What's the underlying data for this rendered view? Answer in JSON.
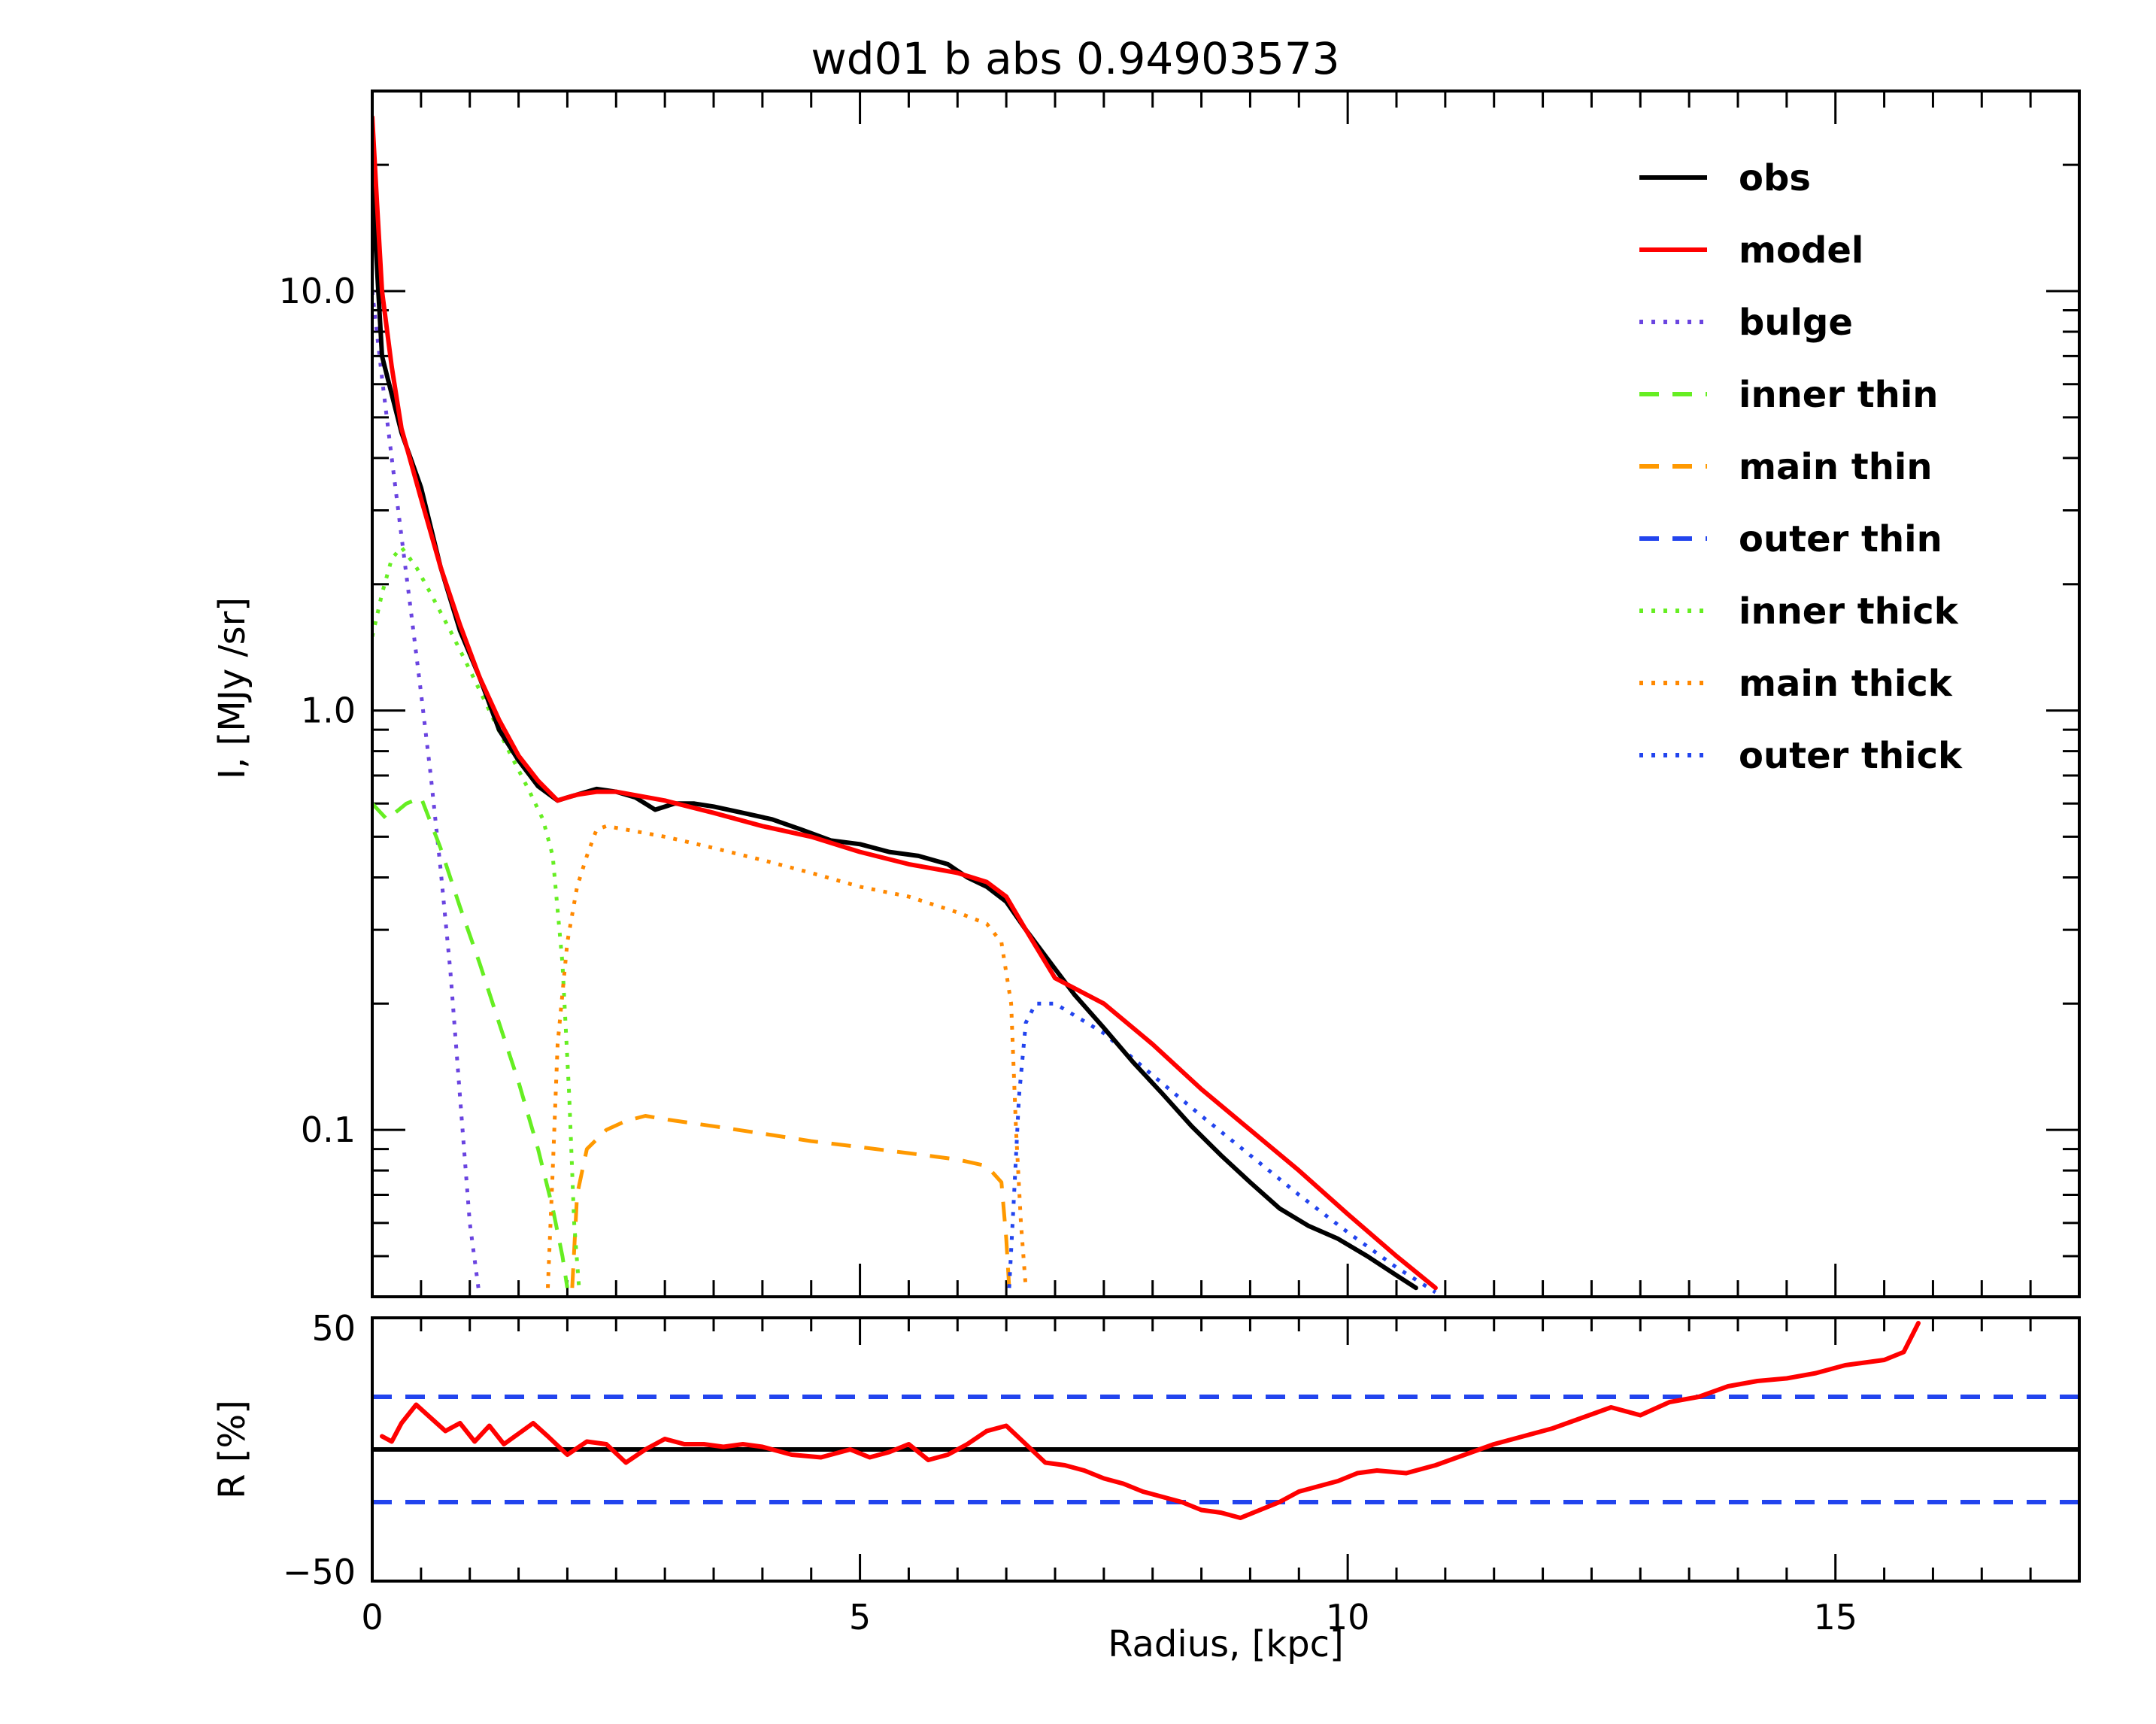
{
  "chart_data": [
    {
      "type": "line",
      "title": "wd01 b abs 0.94903573",
      "xlabel": "",
      "ylabel": "I, [MJy /sr]",
      "xlim": [
        0,
        17.5
      ],
      "ylim": [
        0.04,
        30
      ],
      "yscale": "log",
      "y_ticks": [
        0.1,
        1.0,
        10.0
      ],
      "y_tick_labels": [
        "0.1",
        "1.0",
        "10.0"
      ],
      "legend_position": "top-right",
      "series": [
        {
          "name": "obs",
          "color": "#000000",
          "dash": "solid",
          "x": [
            0.0,
            0.1,
            0.3,
            0.5,
            0.7,
            0.9,
            1.1,
            1.3,
            1.5,
            1.7,
            1.9,
            2.0,
            2.1,
            2.3,
            2.5,
            2.7,
            2.9,
            3.1,
            3.3,
            3.5,
            3.8,
            4.1,
            4.4,
            4.7,
            5.0,
            5.3,
            5.6,
            5.9,
            6.1,
            6.3,
            6.5,
            6.7,
            6.9,
            7.2,
            7.5,
            7.8,
            8.1,
            8.4,
            8.7,
            9.0,
            9.3,
            9.6,
            9.9,
            10.2,
            10.5,
            10.7
          ],
          "y": [
            18.0,
            7.0,
            4.6,
            3.4,
            2.2,
            1.55,
            1.2,
            0.9,
            0.76,
            0.66,
            0.61,
            0.62,
            0.63,
            0.65,
            0.64,
            0.62,
            0.58,
            0.6,
            0.6,
            0.59,
            0.57,
            0.55,
            0.52,
            0.49,
            0.48,
            0.46,
            0.45,
            0.43,
            0.4,
            0.38,
            0.35,
            0.3,
            0.26,
            0.21,
            0.175,
            0.145,
            0.122,
            0.102,
            0.087,
            0.075,
            0.065,
            0.059,
            0.055,
            0.05,
            0.045,
            0.042
          ]
        },
        {
          "name": "model",
          "color": "#ff0000",
          "dash": "solid",
          "x": [
            0.0,
            0.05,
            0.1,
            0.2,
            0.3,
            0.5,
            0.7,
            0.9,
            1.1,
            1.3,
            1.5,
            1.7,
            1.9,
            2.0,
            2.1,
            2.3,
            2.5,
            3.0,
            3.5,
            4.0,
            4.5,
            5.0,
            5.5,
            6.0,
            6.3,
            6.5,
            6.7,
            7.0,
            7.5,
            8.0,
            8.5,
            9.0,
            9.5,
            10.0,
            10.5,
            10.9
          ],
          "y": [
            26.0,
            16.0,
            10.0,
            6.6,
            4.7,
            3.2,
            2.2,
            1.6,
            1.2,
            0.95,
            0.78,
            0.68,
            0.61,
            0.62,
            0.63,
            0.64,
            0.64,
            0.61,
            0.57,
            0.53,
            0.5,
            0.46,
            0.43,
            0.41,
            0.39,
            0.36,
            0.3,
            0.23,
            0.2,
            0.16,
            0.125,
            0.1,
            0.08,
            0.063,
            0.05,
            0.042
          ]
        },
        {
          "name": "bulge",
          "color": "#6a44e0",
          "dash": "dotted",
          "x": [
            0.0,
            0.1,
            0.2,
            0.3,
            0.4,
            0.5,
            0.6,
            0.7,
            0.8,
            0.9,
            1.0,
            1.1
          ],
          "y": [
            10.0,
            6.2,
            4.0,
            2.6,
            1.7,
            1.1,
            0.7,
            0.42,
            0.24,
            0.12,
            0.06,
            0.04
          ]
        },
        {
          "name": "inner thin",
          "color": "#66ee22",
          "dash": "dashed",
          "x": [
            0.0,
            0.15,
            0.35,
            0.5,
            0.7,
            0.9,
            1.1,
            1.3,
            1.5,
            1.7,
            1.85,
            1.95,
            2.0
          ],
          "y": [
            0.6,
            0.55,
            0.6,
            0.62,
            0.47,
            0.34,
            0.25,
            0.18,
            0.13,
            0.09,
            0.065,
            0.05,
            0.042
          ]
        },
        {
          "name": "main thin",
          "color": "#ff9900",
          "dash": "dashed",
          "x": [
            2.05,
            2.1,
            2.2,
            2.4,
            2.6,
            2.8,
            3.0,
            3.5,
            4.0,
            4.5,
            5.0,
            5.5,
            6.0,
            6.3,
            6.45,
            6.5,
            6.53
          ],
          "y": [
            0.042,
            0.07,
            0.09,
            0.1,
            0.105,
            0.108,
            0.106,
            0.102,
            0.098,
            0.094,
            0.091,
            0.088,
            0.085,
            0.082,
            0.075,
            0.055,
            0.042
          ]
        },
        {
          "name": "outer thin",
          "color": "#2244ee",
          "dash": "dashed",
          "x": [],
          "y": []
        },
        {
          "name": "inner thick",
          "color": "#66ee22",
          "dash": "dotted",
          "x": [
            0.0,
            0.1,
            0.2,
            0.3,
            0.45,
            0.6,
            0.8,
            1.0,
            1.2,
            1.4,
            1.6,
            1.75,
            1.85,
            1.95,
            2.02,
            2.07,
            2.12
          ],
          "y": [
            1.5,
            1.9,
            2.3,
            2.45,
            2.2,
            1.9,
            1.55,
            1.25,
            1.0,
            0.8,
            0.65,
            0.55,
            0.45,
            0.25,
            0.12,
            0.06,
            0.042
          ]
        },
        {
          "name": "main thick",
          "color": "#ff8800",
          "dash": "dotted",
          "x": [
            1.8,
            1.85,
            1.9,
            2.0,
            2.1,
            2.2,
            2.3,
            2.4,
            2.6,
            3.0,
            3.5,
            4.0,
            4.5,
            5.0,
            5.5,
            6.0,
            6.3,
            6.45,
            6.55,
            6.6,
            6.65,
            6.7
          ],
          "y": [
            0.042,
            0.08,
            0.16,
            0.28,
            0.38,
            0.45,
            0.52,
            0.53,
            0.52,
            0.5,
            0.47,
            0.44,
            0.41,
            0.38,
            0.36,
            0.33,
            0.31,
            0.28,
            0.2,
            0.1,
            0.06,
            0.042
          ]
        },
        {
          "name": "outer thick",
          "color": "#2244ee",
          "dash": "dotted",
          "x": [
            6.53,
            6.58,
            6.63,
            6.7,
            6.8,
            7.0,
            7.5,
            8.0,
            8.5,
            9.0,
            9.5,
            10.0,
            10.5,
            10.9
          ],
          "y": [
            0.042,
            0.07,
            0.12,
            0.18,
            0.2,
            0.2,
            0.17,
            0.135,
            0.108,
            0.087,
            0.07,
            0.057,
            0.047,
            0.041
          ]
        }
      ]
    },
    {
      "type": "line",
      "title": "",
      "xlabel": "Radius, [kpc]",
      "ylabel": "R [%]",
      "xlim": [
        0,
        17.5
      ],
      "ylim": [
        -50,
        50
      ],
      "x_ticks": [
        0,
        5,
        10,
        15
      ],
      "x_tick_labels": [
        "0",
        "5",
        "10",
        "15"
      ],
      "y_tick_labels": [
        "50",
        "−50"
      ],
      "reference_lines": [
        {
          "y": 0,
          "color": "#000000",
          "dash": "solid"
        },
        {
          "y": 20,
          "color": "#2244ee",
          "dash": "dashed"
        },
        {
          "y": -20,
          "color": "#2244ee",
          "dash": "dashed"
        }
      ],
      "series": [
        {
          "name": "",
          "color": "#ff0000",
          "dash": "solid",
          "x": [
            0.1,
            0.2,
            0.3,
            0.45,
            0.6,
            0.75,
            0.9,
            1.05,
            1.2,
            1.35,
            1.5,
            1.65,
            1.8,
            2.0,
            2.2,
            2.4,
            2.6,
            2.8,
            3.0,
            3.2,
            3.4,
            3.6,
            3.8,
            4.0,
            4.3,
            4.6,
            4.9,
            5.1,
            5.3,
            5.5,
            5.7,
            5.9,
            6.1,
            6.3,
            6.5,
            6.7,
            6.9,
            7.1,
            7.3,
            7.5,
            7.7,
            7.9,
            8.1,
            8.3,
            8.5,
            8.7,
            8.9,
            9.1,
            9.3,
            9.5,
            9.7,
            9.9,
            10.1,
            10.3,
            10.6,
            10.9,
            11.2,
            11.5,
            11.8,
            12.1,
            12.4,
            12.7,
            13.0,
            13.3,
            13.6,
            13.9,
            14.2,
            14.5,
            14.8,
            15.1,
            15.3,
            15.5,
            15.7,
            15.85
          ],
          "y": [
            5,
            3,
            10,
            17,
            12,
            7,
            10,
            3,
            9,
            2,
            6,
            10,
            5,
            -2,
            3,
            2,
            -5,
            0,
            4,
            2,
            2,
            1,
            2,
            1,
            -2,
            -3,
            0,
            -3,
            -1,
            2,
            -4,
            -2,
            2,
            7,
            9,
            2,
            -5,
            -6,
            -8,
            -11,
            -13,
            -16,
            -18,
            -20,
            -23,
            -24,
            -26,
            -23,
            -20,
            -16,
            -14,
            -12,
            -9,
            -8,
            -9,
            -6,
            -2,
            2,
            5,
            8,
            12,
            16,
            13,
            18,
            20,
            24,
            26,
            27,
            29,
            32,
            33,
            34,
            37,
            48
          ]
        }
      ]
    }
  ]
}
